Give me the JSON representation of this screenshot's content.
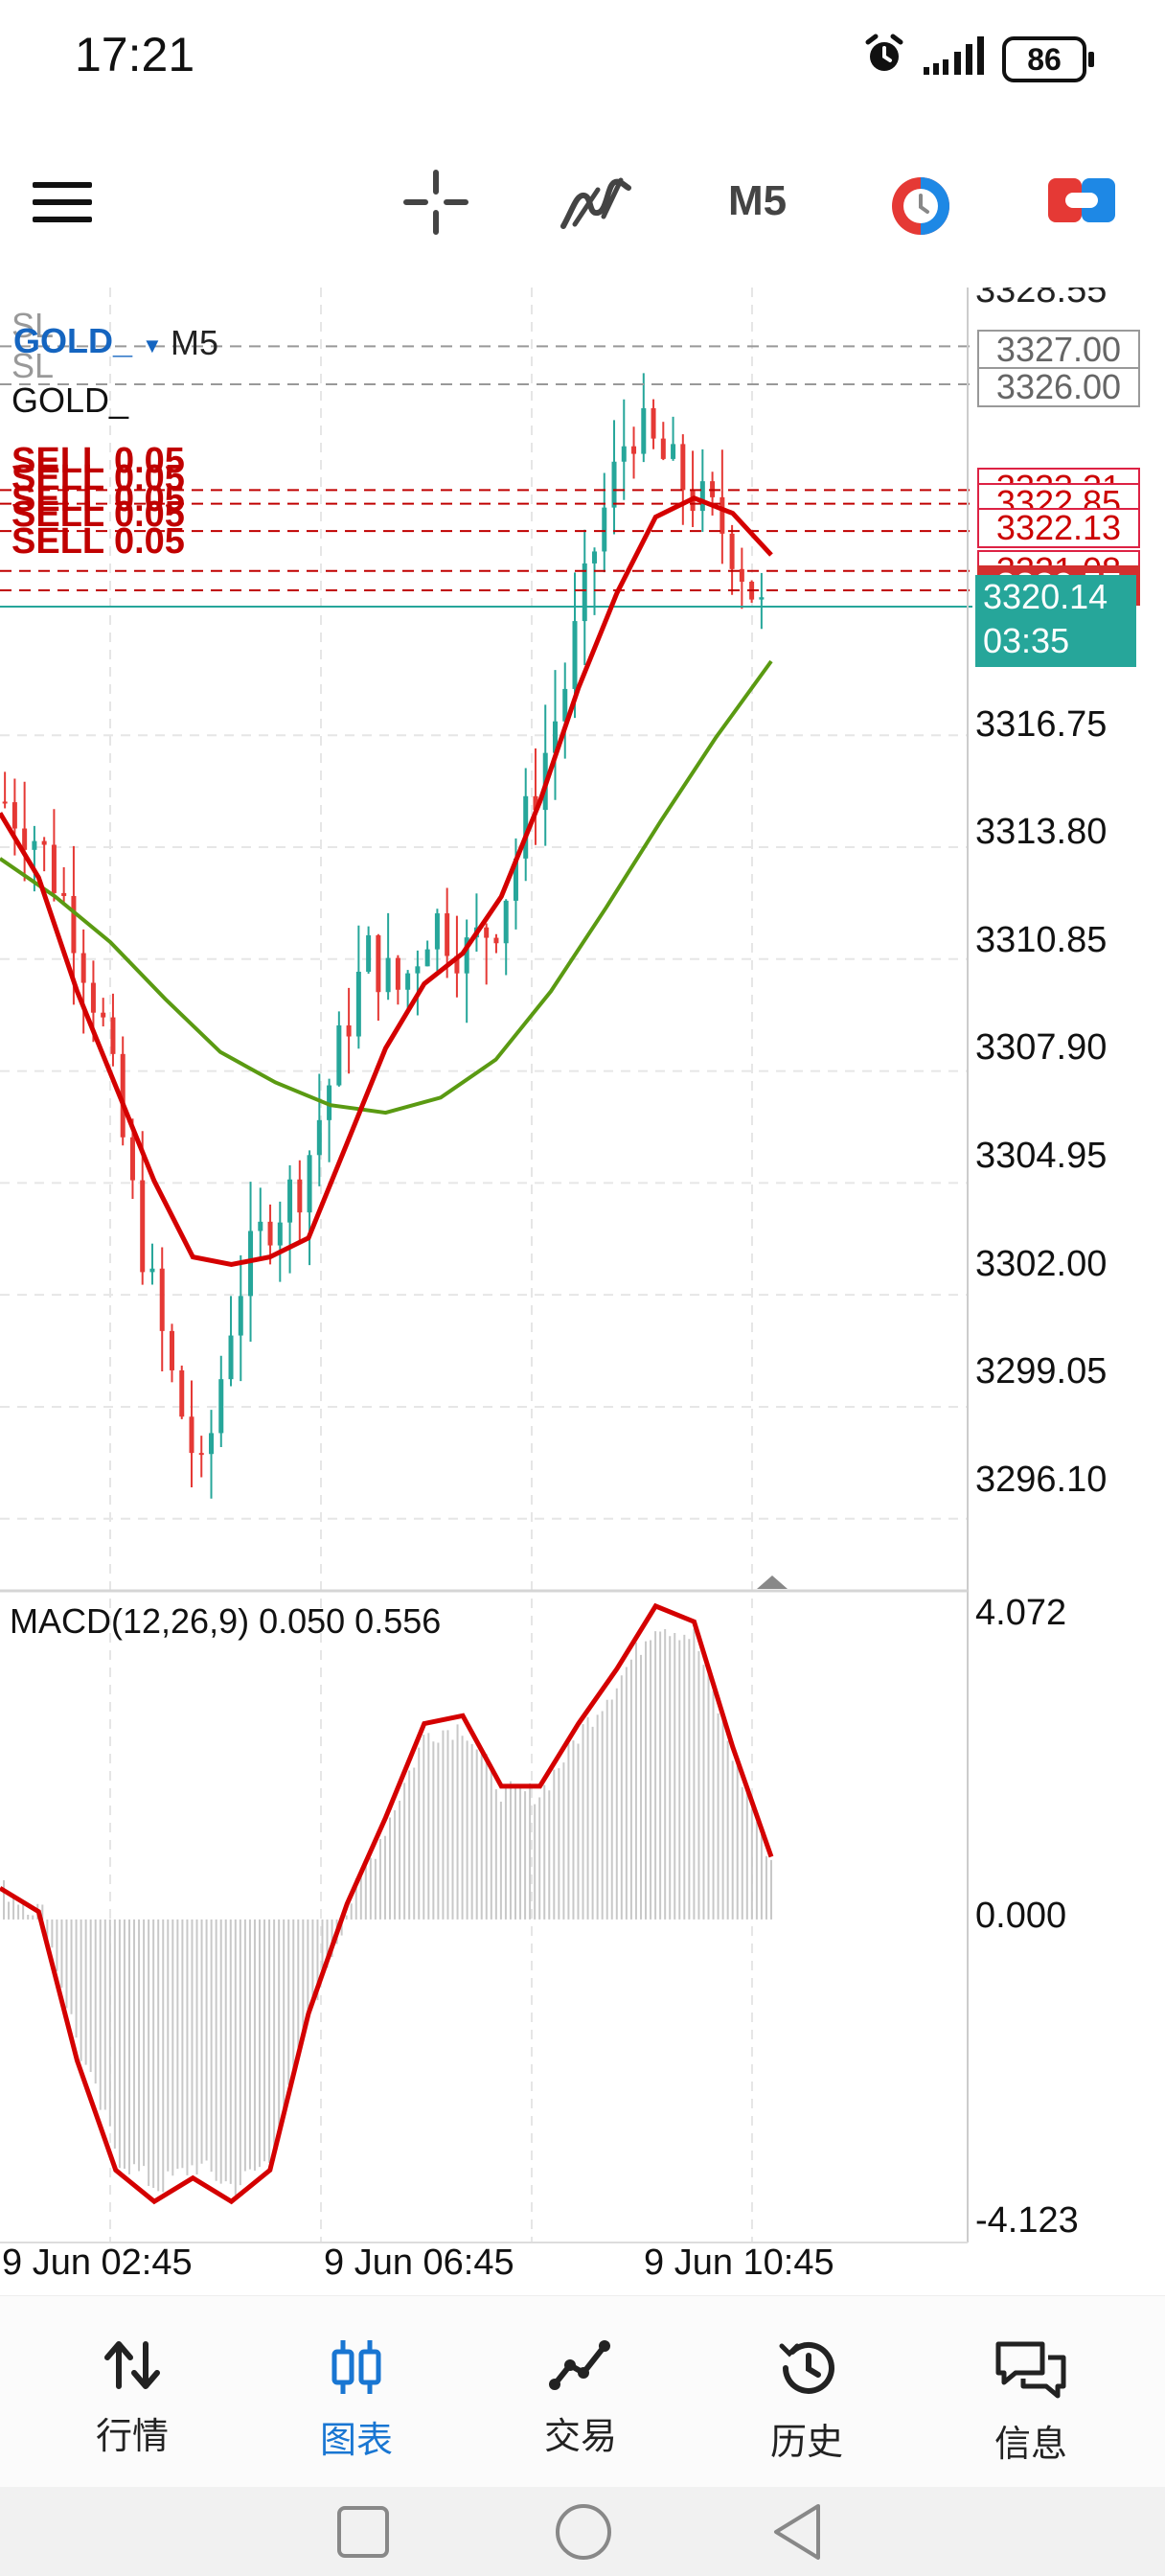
{
  "status_bar": {
    "time": "17:21",
    "battery": "86"
  },
  "toolbar": {
    "menu_icon": "menu-icon",
    "crosshair_icon": "crosshair-icon",
    "indicator_icon": "indicators-icon",
    "timeframe": "M5",
    "objects_icon": "chart-objects-icon",
    "trade_icon": "trade-icon"
  },
  "chart": {
    "symbol": "GOLD_",
    "timeframe": "M5",
    "symbol_name": "GOLD_",
    "sl_labels": [
      "SL",
      "SL"
    ],
    "sell_labels": [
      "SELL 0.05",
      "SELL 0.05",
      "SELL 0.05",
      "SELL 0.05",
      "SELL 0.05"
    ],
    "stop_boxes": [
      "3327.00",
      "3326.00"
    ],
    "order_boxes": [
      "3323.21",
      "3322.85",
      "3322.13",
      "3321.08",
      "3320.57"
    ],
    "current_price": "3320.14",
    "countdown": "03:35",
    "axis_top_partial": "3328.55",
    "y_ticks": [
      "3316.75",
      "3313.80",
      "3310.85",
      "3307.90",
      "3304.95",
      "3302.00",
      "3299.05",
      "3296.10"
    ],
    "colors": {
      "bull": "#26a69a",
      "bear": "#e53935",
      "ma_fast": "#d40000",
      "ma_slow": "#5a9a12",
      "sell_line": "#c00000"
    }
  },
  "macd": {
    "label": "MACD(12,26,9) 0.050 0.556",
    "y_ticks": [
      "4.072",
      "0.000",
      "-4.123"
    ]
  },
  "x_axis": [
    "9 Jun 02:45",
    "9 Jun 06:45",
    "9 Jun 10:45"
  ],
  "chart_data": {
    "type": "candlestick",
    "symbol": "GOLD_",
    "timeframe": "M5",
    "ylim": [
      3294.2,
      3328.55
    ],
    "y_ticks": [
      3316.75,
      3313.8,
      3310.85,
      3307.9,
      3304.95,
      3302.0,
      3299.05,
      3296.1
    ],
    "close_trend": [
      3315,
      3314,
      3312,
      3309,
      3304,
      3300,
      3297,
      3302,
      3304,
      3305,
      3308,
      3311,
      3310,
      3312,
      3311,
      3312,
      3315,
      3318,
      3322,
      3325,
      3324,
      3323,
      3322,
      3320
    ],
    "ma_fast": [
      3314.7,
      3313.0,
      3310.0,
      3307.5,
      3305.0,
      3303.0,
      3302.8,
      3303.0,
      3303.5,
      3306.0,
      3308.5,
      3310.2,
      3311.0,
      3312.5,
      3315.0,
      3318.0,
      3320.5,
      3322.5,
      3323.0,
      3322.6,
      3321.5
    ],
    "ma_slow": [
      3313.5,
      3312.5,
      3311.3,
      3309.8,
      3308.4,
      3307.6,
      3307.0,
      3306.8,
      3307.2,
      3308.2,
      3310.0,
      3312.2,
      3314.5,
      3316.7,
      3318.7
    ],
    "sell_levels": [
      3323.21,
      3322.85,
      3322.13,
      3321.08,
      3320.57
    ],
    "sl_levels": [
      3327.0,
      3326.0
    ],
    "current_price": 3320.14,
    "macd": {
      "ylim": [
        -4.123,
        4.072
      ],
      "signal": [
        0.4,
        0.1,
        -1.8,
        -3.2,
        -3.6,
        -3.3,
        -3.6,
        -3.2,
        -1.2,
        0.2,
        1.3,
        2.5,
        2.6,
        1.7,
        1.7,
        2.5,
        3.2,
        4.0,
        3.8,
        2.2,
        0.8
      ]
    }
  }
}
